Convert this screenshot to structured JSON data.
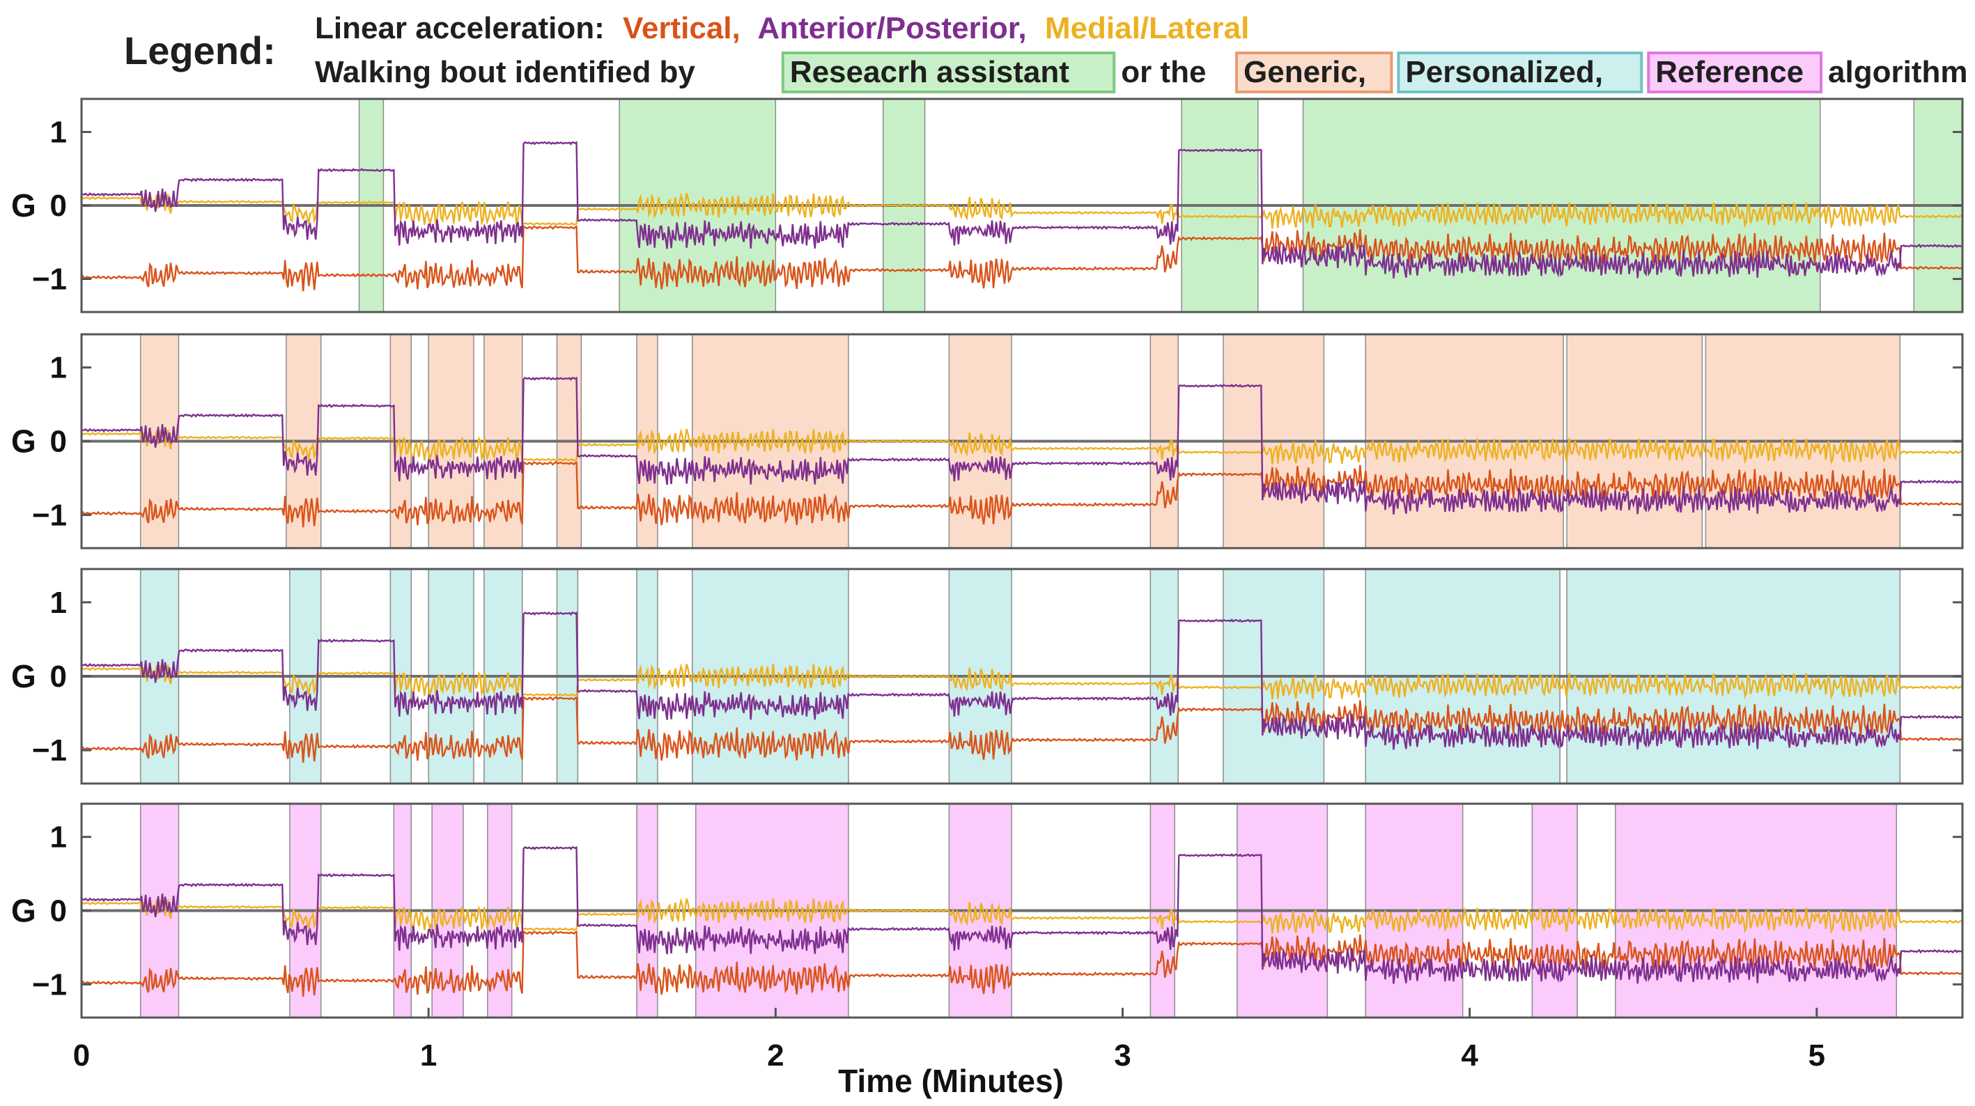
{
  "chart_data": {
    "type": "line",
    "legend": {
      "title": "Legend:",
      "line1_prefix": "Linear acceleration:",
      "series_labels": [
        "Vertical,",
        "Anterior/Posterior,",
        "Medial/Lateral"
      ],
      "line2_prefix": "Walking bout identified by",
      "bout_labels": [
        "Reseacrh assistant",
        "Generic,",
        "Personalized,",
        "Reference"
      ],
      "connector": "or the",
      "suffix": "algorithm"
    },
    "xlabel": "Time (Minutes)",
    "ylabel": "G",
    "xlim": [
      0,
      5.42
    ],
    "ylim": [
      -1.45,
      1.45
    ],
    "xticks": [
      0,
      1,
      2,
      3,
      4,
      5
    ],
    "xtick_labels": [
      "0",
      "1",
      "2",
      "3",
      "4",
      "5"
    ],
    "yticks": [
      1,
      0,
      -1
    ],
    "ytick_labels": [
      "1",
      "0",
      "−1"
    ],
    "series": [
      {
        "name": "Vertical",
        "color": "#D95319"
      },
      {
        "name": "Anterior/Posterior",
        "color": "#7E2F8E"
      },
      {
        "name": "Medial/Lateral",
        "color": "#EDB120"
      }
    ],
    "panels": [
      {
        "name": "Research assistant",
        "fill": "#C8F0C8",
        "edge": "#7FC97F",
        "bouts": [
          [
            0.8,
            0.87
          ],
          [
            1.55,
            2.0
          ],
          [
            2.31,
            2.43
          ],
          [
            3.17,
            3.39
          ],
          [
            3.52,
            5.01
          ],
          [
            5.28,
            5.42
          ]
        ]
      },
      {
        "name": "Generic",
        "fill": "#FBDCCB",
        "edge": "#E89A72",
        "bouts": [
          [
            0.17,
            0.28
          ],
          [
            0.59,
            0.69
          ],
          [
            0.89,
            0.95
          ],
          [
            1.0,
            1.13
          ],
          [
            1.16,
            1.27
          ],
          [
            1.37,
            1.44
          ],
          [
            1.6,
            1.66
          ],
          [
            1.76,
            2.21
          ],
          [
            2.5,
            2.68
          ],
          [
            3.08,
            3.16
          ],
          [
            3.29,
            3.58
          ],
          [
            3.7,
            4.27
          ],
          [
            4.28,
            4.67
          ],
          [
            4.68,
            5.24
          ]
        ]
      },
      {
        "name": "Personalized",
        "fill": "#CDEFEE",
        "edge": "#6FC3C7",
        "bouts": [
          [
            0.17,
            0.28
          ],
          [
            0.6,
            0.69
          ],
          [
            0.89,
            0.95
          ],
          [
            1.0,
            1.13
          ],
          [
            1.16,
            1.27
          ],
          [
            1.37,
            1.43
          ],
          [
            1.6,
            1.66
          ],
          [
            1.76,
            2.21
          ],
          [
            2.5,
            2.68
          ],
          [
            3.08,
            3.16
          ],
          [
            3.29,
            3.58
          ],
          [
            3.7,
            4.26
          ],
          [
            4.28,
            5.24
          ]
        ]
      },
      {
        "name": "Reference",
        "fill": "#FBCBFB",
        "edge": "#E077E0",
        "bouts": [
          [
            0.17,
            0.28
          ],
          [
            0.6,
            0.69
          ],
          [
            0.9,
            0.95
          ],
          [
            1.01,
            1.1
          ],
          [
            1.17,
            1.24
          ],
          [
            1.6,
            1.66
          ],
          [
            1.77,
            2.21
          ],
          [
            2.5,
            2.68
          ],
          [
            3.08,
            3.15
          ],
          [
            3.33,
            3.59
          ],
          [
            3.7,
            3.98
          ],
          [
            4.18,
            4.31
          ],
          [
            4.42,
            5.23
          ]
        ]
      }
    ],
    "signal_segments": [
      {
        "x": [
          0.0,
          0.17
        ],
        "v": -0.98,
        "ap": 0.15,
        "ml": 0.1,
        "walk": false
      },
      {
        "x": [
          0.17,
          0.28
        ],
        "v": -0.95,
        "ap": 0.08,
        "ml": 0.04,
        "walk": true
      },
      {
        "x": [
          0.28,
          0.58
        ],
        "v": -0.92,
        "ap": 0.35,
        "ml": 0.05,
        "walk": false
      },
      {
        "x": [
          0.58,
          0.68
        ],
        "v": -0.95,
        "ap": -0.3,
        "ml": -0.1,
        "walk": true
      },
      {
        "x": [
          0.68,
          0.9
        ],
        "v": -0.95,
        "ap": 0.48,
        "ml": 0.04,
        "walk": false
      },
      {
        "x": [
          0.9,
          1.27
        ],
        "v": -0.95,
        "ap": -0.35,
        "ml": -0.1,
        "walk": true
      },
      {
        "x": [
          1.27,
          1.43
        ],
        "v": -0.3,
        "ap": 0.85,
        "ml": -0.25,
        "walk": false
      },
      {
        "x": [
          1.43,
          1.6
        ],
        "v": -0.9,
        "ap": -0.2,
        "ml": -0.05,
        "walk": false
      },
      {
        "x": [
          1.6,
          2.21
        ],
        "v": -0.92,
        "ap": -0.4,
        "ml": 0.0,
        "walk": true
      },
      {
        "x": [
          2.21,
          2.5
        ],
        "v": -0.88,
        "ap": -0.25,
        "ml": 0.0,
        "walk": false
      },
      {
        "x": [
          2.5,
          2.68
        ],
        "v": -0.92,
        "ap": -0.35,
        "ml": -0.05,
        "walk": true
      },
      {
        "x": [
          2.68,
          3.1
        ],
        "v": -0.86,
        "ap": -0.3,
        "ml": -0.1,
        "walk": false
      },
      {
        "x": [
          3.1,
          3.16
        ],
        "v": -0.7,
        "ap": -0.4,
        "ml": -0.1,
        "walk": true
      },
      {
        "x": [
          3.16,
          3.4
        ],
        "v": -0.45,
        "ap": 0.75,
        "ml": -0.15,
        "walk": false
      },
      {
        "x": [
          3.4,
          3.7
        ],
        "v": -0.55,
        "ap": -0.7,
        "ml": -0.15,
        "walk": true
      },
      {
        "x": [
          3.7,
          5.24
        ],
        "v": -0.6,
        "ap": -0.8,
        "ml": -0.12,
        "walk": true
      },
      {
        "x": [
          5.24,
          5.42
        ],
        "v": -0.85,
        "ap": -0.55,
        "ml": -0.15,
        "walk": false
      }
    ]
  }
}
